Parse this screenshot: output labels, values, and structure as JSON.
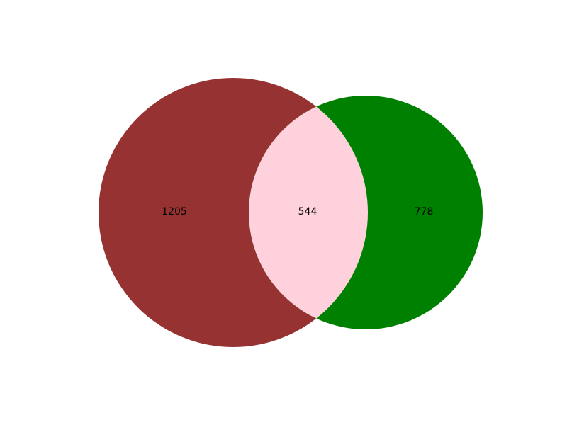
{
  "venn": {
    "sets": [
      {
        "id": "left",
        "color": "#963232"
      },
      {
        "id": "right",
        "color": "#008000"
      }
    ],
    "intersection_color": "#ffd1dc",
    "regions": {
      "left_only": "1205",
      "intersection": "544",
      "right_only": "778"
    }
  }
}
